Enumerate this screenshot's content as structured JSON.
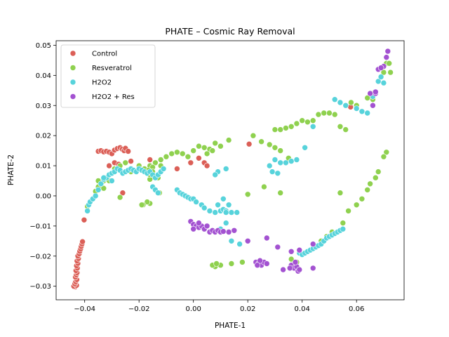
{
  "chart_data": {
    "type": "scatter",
    "title": "PHATE –  Cosmic Ray Removal",
    "xlabel": "PHATE-1",
    "ylabel": "PHATE-2",
    "xlim": [
      -0.0505,
      0.0775
    ],
    "ylim": [
      -0.0345,
      0.0515
    ],
    "xticks": [
      -0.04,
      -0.02,
      0.0,
      0.02,
      0.04,
      0.06
    ],
    "xtick_labels": [
      "−0.04",
      "−0.02",
      "0.00",
      "0.02",
      "0.04",
      "0.06"
    ],
    "yticks": [
      -0.03,
      -0.02,
      -0.01,
      0.0,
      0.01,
      0.02,
      0.03,
      0.04,
      0.05
    ],
    "ytick_labels": [
      "−0.03",
      "−0.02",
      "−0.01",
      "0.00",
      "0.01",
      "0.02",
      "0.03",
      "0.04",
      "0.05"
    ],
    "grid": false,
    "legend_position": "top-left",
    "series": [
      {
        "name": "Control",
        "color": "#db5f57",
        "points": [
          [
            -0.0435,
            -0.0302
          ],
          [
            -0.044,
            -0.03
          ],
          [
            -0.043,
            -0.0297
          ],
          [
            -0.0436,
            -0.0292
          ],
          [
            -0.0433,
            -0.0285
          ],
          [
            -0.0429,
            -0.0278
          ],
          [
            -0.0434,
            -0.027
          ],
          [
            -0.0431,
            -0.0262
          ],
          [
            -0.0428,
            -0.0255
          ],
          [
            -0.0432,
            -0.0248
          ],
          [
            -0.0427,
            -0.024
          ],
          [
            -0.043,
            -0.0232
          ],
          [
            -0.0425,
            -0.0224
          ],
          [
            -0.0428,
            -0.0216
          ],
          [
            -0.0423,
            -0.0208
          ],
          [
            -0.0425,
            -0.02
          ],
          [
            -0.042,
            -0.0192
          ],
          [
            -0.0418,
            -0.0184
          ],
          [
            -0.0415,
            -0.0176
          ],
          [
            -0.0413,
            -0.0168
          ],
          [
            -0.041,
            -0.016
          ],
          [
            -0.0408,
            -0.0152
          ],
          [
            -0.0402,
            -0.008
          ],
          [
            -0.035,
            0.0148
          ],
          [
            -0.034,
            0.015
          ],
          [
            -0.033,
            0.0146
          ],
          [
            -0.032,
            0.0148
          ],
          [
            -0.031,
            0.0145
          ],
          [
            -0.03,
            0.014
          ],
          [
            -0.029,
            0.0152
          ],
          [
            -0.028,
            0.0157
          ],
          [
            -0.027,
            0.016
          ],
          [
            -0.0262,
            0.0155
          ],
          [
            -0.0255,
            0.015
          ],
          [
            -0.025,
            0.0158
          ],
          [
            -0.024,
            0.0148
          ],
          [
            -0.031,
            0.01
          ],
          [
            -0.029,
            0.011
          ],
          [
            -0.0275,
            0.0105
          ],
          [
            -0.026,
            0.001
          ],
          [
            -0.023,
            0.0115
          ],
          [
            -0.016,
            0.012
          ],
          [
            -0.006,
            0.009
          ],
          [
            -0.001,
            0.011
          ],
          [
            0.002,
            0.0125
          ],
          [
            0.004,
            0.011
          ],
          [
            0.005,
            0.01
          ],
          [
            0.0205,
            0.0172
          ],
          [
            0.0578,
            0.0295
          ]
        ]
      },
      {
        "name": "Resveratrol",
        "color": "#8fd14f",
        "points": [
          [
            -0.039,
            -0.0035
          ],
          [
            -0.036,
            0.0015
          ],
          [
            -0.035,
            0.003
          ],
          [
            -0.033,
            0.005
          ],
          [
            -0.031,
            0.007
          ],
          [
            -0.029,
            0.009
          ],
          [
            -0.027,
            0.01
          ],
          [
            -0.025,
            0.011
          ],
          [
            -0.023,
            0.008
          ],
          [
            -0.02,
            0.01
          ],
          [
            -0.018,
            0.009
          ],
          [
            -0.016,
            0.01
          ],
          [
            -0.014,
            0.011
          ],
          [
            -0.012,
            0.012
          ],
          [
            -0.01,
            0.013
          ],
          [
            -0.008,
            0.014
          ],
          [
            -0.006,
            0.0145
          ],
          [
            -0.004,
            0.014
          ],
          [
            -0.002,
            0.013
          ],
          [
            0.0,
            0.015
          ],
          [
            0.002,
            0.0165
          ],
          [
            0.004,
            0.016
          ],
          [
            0.006,
            0.0155
          ],
          [
            0.008,
            0.0175
          ],
          [
            0.01,
            0.0165
          ],
          [
            0.013,
            0.0185
          ],
          [
            -0.016,
            0.0055
          ],
          [
            -0.013,
            0.006
          ],
          [
            -0.016,
            -0.0025
          ],
          [
            -0.017,
            -0.002
          ],
          [
            -0.0125,
            0.001
          ],
          [
            -0.016,
            0.007
          ],
          [
            -0.012,
            0.01
          ],
          [
            -0.015,
            0.0095
          ],
          [
            -0.0165,
            0.0085
          ],
          [
            -0.015,
            0.008
          ],
          [
            -0.0185,
            -0.003
          ],
          [
            -0.019,
            -0.003
          ],
          [
            -0.027,
            -0.0005
          ],
          [
            -0.033,
            0.0025
          ],
          [
            -0.035,
            0.005
          ],
          [
            -0.031,
            0.005
          ],
          [
            0.005,
            0.014
          ],
          [
            0.007,
            0.015
          ],
          [
            0.022,
            0.02
          ],
          [
            0.025,
            0.018
          ],
          [
            0.028,
            0.017
          ],
          [
            0.03,
            0.016
          ],
          [
            0.03,
            0.022
          ],
          [
            0.032,
            0.022
          ],
          [
            0.034,
            0.0225
          ],
          [
            0.036,
            0.023
          ],
          [
            0.038,
            0.024
          ],
          [
            0.04,
            0.025
          ],
          [
            0.042,
            0.0245
          ],
          [
            0.044,
            0.025
          ],
          [
            0.046,
            0.027
          ],
          [
            0.048,
            0.0275
          ],
          [
            0.05,
            0.0275
          ],
          [
            0.052,
            0.027
          ],
          [
            0.054,
            0.023
          ],
          [
            0.056,
            0.022
          ],
          [
            0.058,
            0.031
          ],
          [
            0.06,
            0.03
          ],
          [
            0.064,
            0.0325
          ],
          [
            0.066,
            0.034
          ],
          [
            0.066,
            0.032
          ],
          [
            0.07,
            0.041
          ],
          [
            0.071,
            0.044
          ],
          [
            0.072,
            0.044
          ],
          [
            0.0725,
            0.041
          ],
          [
            0.071,
            0.0145
          ],
          [
            0.07,
            0.013
          ],
          [
            0.068,
            0.008
          ],
          [
            0.067,
            0.006
          ],
          [
            0.065,
            0.004
          ],
          [
            0.064,
            0.002
          ],
          [
            0.062,
            -0.001
          ],
          [
            0.06,
            -0.003
          ],
          [
            0.057,
            -0.005
          ],
          [
            0.055,
            -0.009
          ],
          [
            0.054,
            0.001
          ],
          [
            0.051,
            -0.012
          ],
          [
            0.049,
            -0.0135
          ],
          [
            0.047,
            -0.015
          ],
          [
            0.045,
            -0.017
          ],
          [
            0.036,
            -0.021
          ],
          [
            0.038,
            -0.022
          ],
          [
            0.035,
            0.0125
          ],
          [
            0.032,
            0.015
          ],
          [
            0.026,
            0.003
          ],
          [
            0.02,
            0.0005
          ],
          [
            0.025,
            -0.022
          ],
          [
            0.018,
            -0.022
          ],
          [
            0.014,
            -0.0225
          ],
          [
            0.01,
            -0.023
          ],
          [
            0.008,
            -0.0235
          ],
          [
            0.007,
            -0.023
          ],
          [
            0.0085,
            -0.0225
          ],
          [
            0.032,
            0.001
          ]
        ]
      },
      {
        "name": "H2O2",
        "color": "#57d3db",
        "points": [
          [
            -0.039,
            -0.005
          ],
          [
            -0.0385,
            -0.003
          ],
          [
            -0.038,
            -0.002
          ],
          [
            -0.037,
            -0.001
          ],
          [
            -0.036,
            0.0
          ],
          [
            -0.035,
            0.002
          ],
          [
            -0.034,
            0.004
          ],
          [
            -0.033,
            0.0055
          ],
          [
            -0.032,
            0.006
          ],
          [
            -0.031,
            0.007
          ],
          [
            -0.03,
            0.0075
          ],
          [
            -0.029,
            0.008
          ],
          [
            -0.028,
            0.009
          ],
          [
            -0.027,
            0.0085
          ],
          [
            -0.026,
            0.0075
          ],
          [
            -0.025,
            0.008
          ],
          [
            -0.024,
            0.0085
          ],
          [
            -0.023,
            0.009
          ],
          [
            -0.022,
            0.0085
          ],
          [
            -0.021,
            0.008
          ],
          [
            -0.02,
            0.009
          ],
          [
            -0.019,
            0.0085
          ],
          [
            -0.018,
            0.008
          ],
          [
            -0.017,
            0.0075
          ],
          [
            -0.016,
            0.008
          ],
          [
            -0.015,
            0.007
          ],
          [
            -0.014,
            0.006
          ],
          [
            -0.013,
            0.007
          ],
          [
            -0.012,
            0.008
          ],
          [
            -0.011,
            0.009
          ],
          [
            -0.015,
            0.003
          ],
          [
            -0.014,
            0.002
          ],
          [
            -0.013,
            0.001
          ],
          [
            -0.033,
            0.006
          ],
          [
            -0.03,
            0.005
          ],
          [
            -0.006,
            0.002
          ],
          [
            -0.005,
            0.001
          ],
          [
            -0.004,
            0.0005
          ],
          [
            -0.003,
            0.0
          ],
          [
            -0.002,
            -0.0005
          ],
          [
            -0.001,
            -0.001
          ],
          [
            0.0,
            -0.001
          ],
          [
            0.001,
            -0.002
          ],
          [
            0.003,
            -0.003
          ],
          [
            0.004,
            -0.004
          ],
          [
            0.006,
            -0.005
          ],
          [
            0.008,
            -0.0055
          ],
          [
            0.01,
            -0.005
          ],
          [
            0.011,
            -0.0045
          ],
          [
            0.012,
            -0.005
          ],
          [
            0.009,
            -0.003
          ],
          [
            0.011,
            -0.001
          ],
          [
            0.013,
            -0.003
          ],
          [
            0.014,
            -0.0055
          ],
          [
            0.016,
            -0.0055
          ],
          [
            0.012,
            -0.0055
          ],
          [
            0.012,
            -0.009
          ],
          [
            0.014,
            -0.015
          ],
          [
            0.01,
            -0.011
          ],
          [
            0.017,
            -0.016
          ],
          [
            0.012,
            0.009
          ],
          [
            0.009,
            0.008
          ],
          [
            0.008,
            0.007
          ],
          [
            0.029,
            0.008
          ],
          [
            0.031,
            0.0075
          ],
          [
            0.032,
            0.011
          ],
          [
            0.034,
            0.011
          ],
          [
            0.036,
            0.0115
          ],
          [
            0.038,
            0.012
          ],
          [
            0.041,
            0.016
          ],
          [
            0.044,
            0.023
          ],
          [
            0.052,
            0.032
          ],
          [
            0.054,
            0.031
          ],
          [
            0.056,
            0.03
          ],
          [
            0.06,
            0.029
          ],
          [
            0.062,
            0.028
          ],
          [
            0.064,
            0.0275
          ],
          [
            0.066,
            0.033
          ],
          [
            0.068,
            0.038
          ],
          [
            0.069,
            0.0395
          ],
          [
            0.07,
            0.0375
          ],
          [
            0.039,
            -0.019
          ],
          [
            0.04,
            -0.0195
          ],
          [
            0.041,
            -0.019
          ],
          [
            0.042,
            -0.0185
          ],
          [
            0.043,
            -0.018
          ],
          [
            0.044,
            -0.0175
          ],
          [
            0.045,
            -0.017
          ],
          [
            0.046,
            -0.0165
          ],
          [
            0.047,
            -0.016
          ],
          [
            0.048,
            -0.015
          ],
          [
            0.049,
            -0.014
          ],
          [
            0.05,
            -0.0135
          ],
          [
            0.051,
            -0.013
          ],
          [
            0.052,
            -0.0125
          ],
          [
            0.053,
            -0.012
          ],
          [
            0.054,
            -0.0115
          ],
          [
            0.055,
            -0.011
          ],
          [
            0.028,
            0.01
          ],
          [
            0.03,
            0.012
          ]
        ]
      },
      {
        "name": "H2O2 + Res",
        "color": "#a352d1",
        "points": [
          [
            -0.001,
            -0.0085
          ],
          [
            0.0,
            -0.0095
          ],
          [
            0.001,
            -0.01
          ],
          [
            0.002,
            -0.0105
          ],
          [
            0.003,
            -0.01
          ],
          [
            0.004,
            -0.011
          ],
          [
            0.005,
            -0.01
          ],
          [
            0.006,
            -0.012
          ],
          [
            0.007,
            -0.0115
          ],
          [
            0.008,
            -0.012
          ],
          [
            0.009,
            -0.0115
          ],
          [
            0.01,
            -0.012
          ],
          [
            0.011,
            -0.0118
          ],
          [
            0.013,
            -0.012
          ],
          [
            0.015,
            -0.0115
          ],
          [
            0.002,
            -0.009
          ],
          [
            0.0,
            -0.011
          ],
          [
            0.023,
            -0.022
          ],
          [
            0.024,
            -0.0225
          ],
          [
            0.025,
            -0.023
          ],
          [
            0.026,
            -0.022
          ],
          [
            0.0245,
            -0.0215
          ],
          [
            0.0235,
            -0.023
          ],
          [
            0.027,
            -0.0225
          ],
          [
            0.036,
            -0.023
          ],
          [
            0.037,
            -0.024
          ],
          [
            0.038,
            -0.0235
          ],
          [
            0.0375,
            -0.022
          ],
          [
            0.0385,
            -0.025
          ],
          [
            0.039,
            -0.0245
          ],
          [
            0.0355,
            -0.024
          ],
          [
            0.033,
            -0.0245
          ],
          [
            0.039,
            -0.018
          ],
          [
            0.036,
            -0.0185
          ],
          [
            0.027,
            -0.014
          ],
          [
            0.031,
            -0.017
          ],
          [
            0.02,
            -0.015
          ],
          [
            0.044,
            -0.016
          ],
          [
            0.066,
            0.03
          ],
          [
            0.067,
            0.034
          ],
          [
            0.068,
            0.042
          ],
          [
            0.07,
            0.043
          ],
          [
            0.071,
            0.046
          ],
          [
            0.0715,
            0.048
          ],
          [
            0.069,
            0.0425
          ],
          [
            0.065,
            0.034
          ],
          [
            0.067,
            0.0345
          ],
          [
            0.044,
            -0.024
          ]
        ]
      }
    ]
  }
}
